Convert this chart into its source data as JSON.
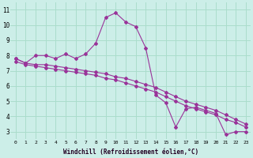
{
  "xlabel": "Windchill (Refroidissement éolien,°C)",
  "bg_color": "#cceee8",
  "grid_color": "#aaddcc",
  "line_color": "#993399",
  "xlim": [
    -0.5,
    23.5
  ],
  "ylim": [
    2.5,
    11.5
  ],
  "xticks": [
    0,
    1,
    2,
    3,
    4,
    5,
    6,
    7,
    8,
    9,
    10,
    11,
    12,
    13,
    14,
    15,
    16,
    17,
    18,
    19,
    20,
    21,
    22,
    23
  ],
  "yticks": [
    3,
    4,
    5,
    6,
    7,
    8,
    9,
    10,
    11
  ],
  "series1_x": [
    0,
    1,
    2,
    3,
    4,
    5,
    6,
    7,
    8,
    9,
    10,
    11,
    12,
    13,
    14,
    15,
    16,
    17,
    18,
    19,
    20,
    21,
    22,
    23
  ],
  "series1_y": [
    7.8,
    7.5,
    8.0,
    8.0,
    7.8,
    8.1,
    7.8,
    8.1,
    8.8,
    10.5,
    10.8,
    10.2,
    9.9,
    8.5,
    5.4,
    4.9,
    3.3,
    4.5,
    4.6,
    4.4,
    4.2,
    2.8,
    3.0,
    3.0
  ],
  "series2_x": [
    0,
    1,
    2,
    3,
    4,
    5,
    6,
    7,
    8,
    9,
    10,
    11,
    12,
    13,
    14,
    15,
    16,
    17,
    18,
    19,
    20,
    21,
    22,
    23
  ],
  "series2_y": [
    7.8,
    7.5,
    7.4,
    7.4,
    7.3,
    7.2,
    7.1,
    7.0,
    6.9,
    6.8,
    6.6,
    6.5,
    6.3,
    6.1,
    5.9,
    5.6,
    5.3,
    5.0,
    4.8,
    4.6,
    4.4,
    4.1,
    3.8,
    3.5
  ],
  "series3_x": [
    0,
    1,
    2,
    3,
    4,
    5,
    6,
    7,
    8,
    9,
    10,
    11,
    12,
    13,
    14,
    15,
    16,
    17,
    18,
    19,
    20,
    21,
    22,
    23
  ],
  "series3_y": [
    7.6,
    7.4,
    7.3,
    7.2,
    7.1,
    7.0,
    6.9,
    6.8,
    6.7,
    6.5,
    6.4,
    6.2,
    6.0,
    5.8,
    5.6,
    5.3,
    5.0,
    4.7,
    4.5,
    4.3,
    4.1,
    3.8,
    3.6,
    3.3
  ]
}
